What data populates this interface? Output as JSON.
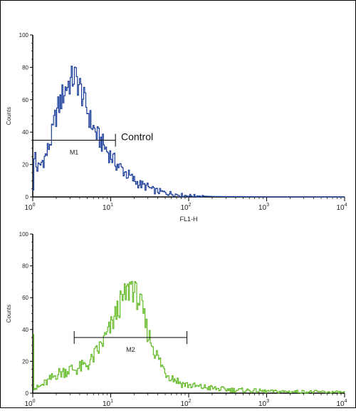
{
  "chart_data": [
    {
      "type": "line",
      "title": "",
      "xlabel": "FL1-H",
      "ylabel": "Counts",
      "x_scale": "log",
      "xlim": [
        1,
        10000
      ],
      "ylim": [
        0,
        100
      ],
      "y_ticks": [
        0,
        20,
        40,
        60,
        80,
        100
      ],
      "x_ticks": [
        {
          "base": "10",
          "exp": "0",
          "value": 1
        },
        {
          "base": "10",
          "exp": "1",
          "value": 10
        },
        {
          "base": "10",
          "exp": "2",
          "value": 100
        },
        {
          "base": "10",
          "exp": "3",
          "value": 1000
        },
        {
          "base": "10",
          "exp": "4",
          "value": 10000
        }
      ],
      "grid": false,
      "color": "#1c3f9c",
      "series": [
        {
          "values": [
            [
              1.0,
              6
            ],
            [
              1.05,
              30
            ],
            [
              1.1,
              18
            ],
            [
              1.2,
              18
            ],
            [
              1.3,
              22
            ],
            [
              1.4,
              24
            ],
            [
              1.5,
              27
            ],
            [
              1.6,
              32
            ],
            [
              1.7,
              36
            ],
            [
              1.8,
              42
            ],
            [
              1.9,
              48
            ],
            [
              2.0,
              52
            ],
            [
              2.2,
              58
            ],
            [
              2.4,
              63
            ],
            [
              2.6,
              67
            ],
            [
              2.8,
              70
            ],
            [
              3.0,
              71
            ],
            [
              3.2,
              73
            ],
            [
              3.4,
              75
            ],
            [
              3.6,
              72
            ],
            [
              3.9,
              69
            ],
            [
              4.2,
              64
            ],
            [
              4.6,
              58
            ],
            [
              5.0,
              53
            ],
            [
              5.5,
              46
            ],
            [
              6.0,
              42
            ],
            [
              6.6,
              38
            ],
            [
              7.2,
              35
            ],
            [
              8.0,
              32
            ],
            [
              9.0,
              28
            ],
            [
              10,
              25
            ],
            [
              11,
              22
            ],
            [
              12.5,
              19
            ],
            [
              14,
              17
            ],
            [
              16,
              14
            ],
            [
              18,
              12
            ],
            [
              20,
              10
            ],
            [
              23,
              8
            ],
            [
              26,
              7
            ],
            [
              30,
              6
            ],
            [
              35,
              4
            ],
            [
              40,
              3.5
            ],
            [
              50,
              2.5
            ],
            [
              60,
              2
            ],
            [
              70,
              1.5
            ],
            [
              85,
              1
            ],
            [
              100,
              0.8
            ],
            [
              150,
              0.5
            ],
            [
              200,
              0.3
            ],
            [
              300,
              0.2
            ],
            [
              500,
              0.2
            ],
            [
              1000,
              0.1
            ],
            [
              3000,
              0.1
            ],
            [
              10000,
              0
            ]
          ]
        }
      ],
      "annotations": [
        {
          "type": "marker",
          "label": "M1",
          "x_start": 1,
          "x_end": 11.5,
          "y": 35
        },
        {
          "type": "text",
          "label": "Control",
          "x": 13,
          "y": 36
        }
      ]
    },
    {
      "type": "line",
      "title": "",
      "xlabel": "",
      "ylabel": "Counts",
      "x_scale": "log",
      "xlim": [
        1,
        10000
      ],
      "ylim": [
        0,
        100
      ],
      "y_ticks": [
        0,
        20,
        40,
        60,
        80,
        100
      ],
      "x_ticks": [
        {
          "base": "10",
          "exp": "0",
          "value": 1
        },
        {
          "base": "10",
          "exp": "1",
          "value": 10
        },
        {
          "base": "10",
          "exp": "2",
          "value": 100
        },
        {
          "base": "10",
          "exp": "3",
          "value": 1000
        },
        {
          "base": "10",
          "exp": "4",
          "value": 10000
        }
      ],
      "grid": false,
      "color": "#66bb2a",
      "series": [
        {
          "values": [
            [
              1.0,
              44
            ],
            [
              1.03,
              4
            ],
            [
              1.1,
              3
            ],
            [
              1.2,
              4
            ],
            [
              1.4,
              6
            ],
            [
              1.6,
              8
            ],
            [
              1.8,
              10
            ],
            [
              2.0,
              12
            ],
            [
              2.3,
              13
            ],
            [
              2.6,
              14
            ],
            [
              3.0,
              15
            ],
            [
              3.5,
              15
            ],
            [
              4.0,
              16
            ],
            [
              4.5,
              17
            ],
            [
              5.0,
              18
            ],
            [
              5.5,
              20
            ],
            [
              6.0,
              23
            ],
            [
              7.0,
              28
            ],
            [
              8.0,
              33
            ],
            [
              9.0,
              37
            ],
            [
              10,
              42
            ],
            [
              11,
              47
            ],
            [
              12,
              52
            ],
            [
              13,
              56
            ],
            [
              14,
              58
            ],
            [
              15,
              61
            ],
            [
              16,
              63
            ],
            [
              17,
              65
            ],
            [
              18,
              70
            ],
            [
              19,
              66
            ],
            [
              20,
              63
            ],
            [
              22,
              60
            ],
            [
              24,
              55
            ],
            [
              26,
              49
            ],
            [
              28,
              42
            ],
            [
              30,
              37
            ],
            [
              33,
              32
            ],
            [
              36,
              27
            ],
            [
              40,
              22
            ],
            [
              45,
              17
            ],
            [
              50,
              13
            ],
            [
              60,
              10
            ],
            [
              70,
              8
            ],
            [
              80,
              6
            ],
            [
              100,
              5
            ],
            [
              130,
              4
            ],
            [
              170,
              3.5
            ],
            [
              250,
              2.5
            ],
            [
              400,
              2
            ],
            [
              700,
              1.5
            ],
            [
              1200,
              1
            ],
            [
              2000,
              1
            ],
            [
              4000,
              0.8
            ],
            [
              10000,
              0.5
            ]
          ]
        }
      ],
      "annotations": [
        {
          "type": "marker",
          "label": "M2",
          "x_start": 3.4,
          "x_end": 95,
          "y": 35
        }
      ]
    }
  ]
}
